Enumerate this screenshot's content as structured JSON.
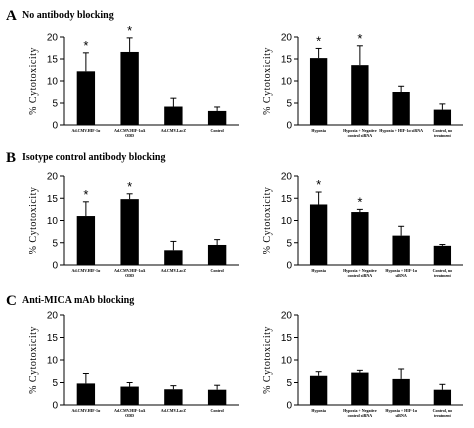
{
  "panels": [
    {
      "letter": "A",
      "title": "No antibody blocking"
    },
    {
      "letter": "B",
      "title": "Isotype control antibody blocking"
    },
    {
      "letter": "C",
      "title": "Anti-MICA mAb blocking"
    }
  ],
  "chart_data": [
    {
      "type": "bar",
      "panel": "A",
      "position": "left",
      "categories": [
        [
          "Ad.CMV.HIF-1α"
        ],
        [
          "Ad.CMV.HIF-1αΔ",
          "ODD"
        ],
        [
          "Ad.CMV.LacZ"
        ],
        [
          "Control"
        ]
      ],
      "values": [
        12.2,
        16.6,
        4.2,
        3.2
      ],
      "errors": [
        4.2,
        3.2,
        1.9,
        0.9
      ],
      "significance": [
        true,
        true,
        false,
        false
      ],
      "ylabel": "% Cytotoxicity",
      "ylim": [
        0,
        20
      ],
      "yticks": [
        0,
        5,
        10,
        15,
        20
      ],
      "grid": false
    },
    {
      "type": "bar",
      "panel": "A",
      "position": "right",
      "categories": [
        [
          "Hypoxia"
        ],
        [
          "Hypoxia + Negative",
          "control siRNA"
        ],
        [
          "Hypoxia + HIF-1α siRNA"
        ],
        [
          "Control, no",
          "treatment"
        ]
      ],
      "values": [
        15.2,
        13.6,
        7.5,
        3.5
      ],
      "errors": [
        2.2,
        4.4,
        1.3,
        1.3
      ],
      "significance": [
        true,
        true,
        false,
        false
      ],
      "ylabel": "% Cytotoxicity",
      "ylim": [
        0,
        20
      ],
      "yticks": [
        0,
        5,
        10,
        15,
        20
      ],
      "grid": false
    },
    {
      "type": "bar",
      "panel": "B",
      "position": "left",
      "categories": [
        [
          "Ad.CMV.HIF-1α"
        ],
        [
          "Ad.CMV.HIF-1αΔ",
          "ODD"
        ],
        [
          "Ad.CMV.LacZ"
        ],
        [
          "Control"
        ]
      ],
      "values": [
        11.0,
        14.8,
        3.3,
        4.5
      ],
      "errors": [
        3.2,
        1.2,
        2.0,
        1.2
      ],
      "significance": [
        true,
        true,
        false,
        false
      ],
      "ylabel": "% Cytotoxicity",
      "ylim": [
        0,
        20
      ],
      "yticks": [
        0,
        5,
        10,
        15,
        20
      ],
      "grid": false
    },
    {
      "type": "bar",
      "panel": "B",
      "position": "right",
      "categories": [
        [
          "Hypoxia"
        ],
        [
          "Hypoxia + Negative",
          "control siRNA"
        ],
        [
          "Hypoxia + HIF-1α",
          "siRNA"
        ],
        [
          "Control, no",
          "treatment"
        ]
      ],
      "values": [
        13.6,
        11.9,
        6.6,
        4.3
      ],
      "errors": [
        2.8,
        0.6,
        2.1,
        0.3
      ],
      "significance": [
        true,
        true,
        false,
        false
      ],
      "ylabel": "% Cytotoxicity",
      "ylim": [
        0,
        20
      ],
      "yticks": [
        0,
        5,
        10,
        15,
        20
      ],
      "grid": false
    },
    {
      "type": "bar",
      "panel": "C",
      "position": "left",
      "categories": [
        [
          "Ad.CMV.HIF-1α"
        ],
        [
          "Ad.CMV.HIF-1αΔ",
          "ODD"
        ],
        [
          "Ad.CMV.LacZ"
        ],
        [
          "Control"
        ]
      ],
      "values": [
        4.8,
        4.1,
        3.5,
        3.4
      ],
      "errors": [
        2.2,
        0.9,
        0.8,
        1.0
      ],
      "significance": [
        false,
        false,
        false,
        false
      ],
      "ylabel": "% Cytotoxicity",
      "ylim": [
        0,
        20
      ],
      "yticks": [
        0,
        5,
        10,
        15,
        20
      ],
      "grid": false
    },
    {
      "type": "bar",
      "panel": "C",
      "position": "right",
      "categories": [
        [
          "Hypoxia"
        ],
        [
          "Hypoxia + Negative",
          "control siRNA"
        ],
        [
          "Hypoxia + HIF-1α",
          "siRNA"
        ],
        [
          "Control, no",
          "treatment"
        ]
      ],
      "values": [
        6.5,
        7.2,
        5.8,
        3.4
      ],
      "errors": [
        0.9,
        0.5,
        2.2,
        1.2
      ],
      "significance": [
        false,
        false,
        false,
        false
      ],
      "ylabel": "% Cytotoxicity",
      "ylim": [
        0,
        20
      ],
      "yticks": [
        0,
        5,
        10,
        15,
        20
      ],
      "grid": false
    }
  ],
  "significance_marker": "*",
  "colors": {
    "bar": "#000000",
    "axis": "#000000",
    "background": "#ffffff"
  }
}
